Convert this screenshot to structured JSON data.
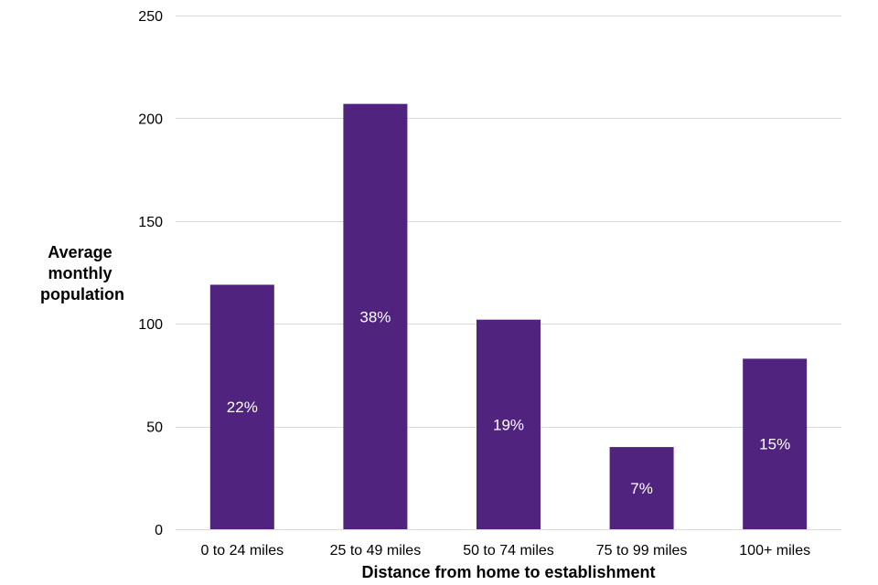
{
  "chart_data": {
    "type": "bar",
    "categories": [
      "0 to 24 miles",
      "25 to 49 miles",
      "50 to 74 miles",
      "75 to 99 miles",
      "100+ miles"
    ],
    "values": [
      119,
      207,
      102,
      40,
      83
    ],
    "data_labels": [
      "22%",
      "38%",
      "19%",
      "7%",
      "15%"
    ],
    "title": "",
    "xlabel": "Distance from home to establishment",
    "ylabel_lines": [
      "Average",
      "monthly",
      "population"
    ],
    "ylim": [
      0,
      250
    ],
    "yticks": [
      0,
      50,
      100,
      150,
      200,
      250
    ],
    "grid": true,
    "legend": "none",
    "bar_color": "#50237f",
    "grid_color": "#d9d9d9"
  }
}
